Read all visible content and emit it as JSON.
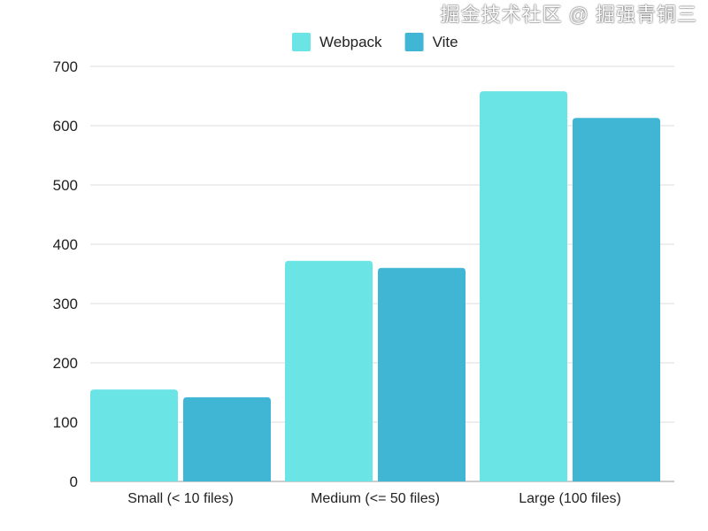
{
  "chart_data": {
    "type": "bar",
    "title": "",
    "xlabel": "",
    "ylabel": "",
    "categories": [
      "Small (< 10 files)",
      "Medium (<= 50 files)",
      "Large (100 files)"
    ],
    "series": [
      {
        "name": "Webpack",
        "color": "#6be4e6",
        "values": [
          155,
          372,
          658
        ]
      },
      {
        "name": "Vite",
        "color": "#41b6d4",
        "values": [
          142,
          360,
          613
        ]
      }
    ],
    "ylim": [
      0,
      700
    ],
    "yticks": [
      0,
      100,
      200,
      300,
      400,
      500,
      600,
      700
    ],
    "grid": true,
    "legend": "top-center"
  },
  "watermark": "掘金技术社区 @ 掘强青铜三"
}
